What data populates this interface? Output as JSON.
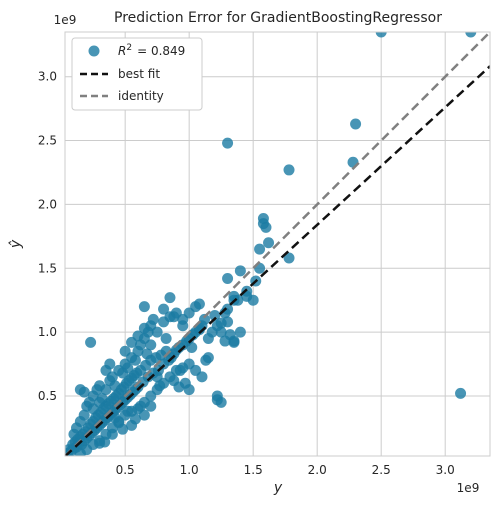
{
  "chart_data": {
    "type": "scatter",
    "title": "Prediction Error for GradientBoostingRegressor",
    "xlabel": "y",
    "ylabel": "ŷ",
    "x_exponent_label": "1e9",
    "y_exponent_label": "1e9",
    "xlim": [
      0.03,
      3.35
    ],
    "ylim": [
      0.03,
      3.35
    ],
    "xticks": [
      0.5,
      1.0,
      1.5,
      2.0,
      2.5,
      3.0
    ],
    "yticks": [
      0.5,
      1.0,
      1.5,
      2.0,
      2.5,
      3.0
    ],
    "grid": true,
    "legend_placement": "top-left",
    "colors": {
      "points": "#1a7ba3",
      "best_fit": "#111111",
      "identity": "#808080",
      "grid": "#cccccc",
      "axes_border": "#cccccc"
    },
    "legend": [
      {
        "label": "$R^2$ = 0.849",
        "superscript_label": true,
        "kind": "marker"
      },
      {
        "label": "best fit",
        "kind": "dashed-line"
      },
      {
        "label": "identity",
        "kind": "dashed-line"
      }
    ],
    "legend_r2_text": {
      "base": "R",
      "sup": "2",
      "rest": "= 0.849"
    },
    "r_squared": 0.849,
    "best_fit": {
      "slope": 0.92,
      "intercept": 0.0
    },
    "identity": {
      "slope": 1.0,
      "intercept": 0.0
    },
    "series": [
      {
        "name": "",
        "points": [
          [
            0.05,
            0.05
          ],
          [
            0.06,
            0.08
          ],
          [
            0.08,
            0.07
          ],
          [
            0.09,
            0.12
          ],
          [
            0.1,
            0.09
          ],
          [
            0.11,
            0.14
          ],
          [
            0.12,
            0.1
          ],
          [
            0.13,
            0.16
          ],
          [
            0.14,
            0.13
          ],
          [
            0.15,
            0.18
          ],
          [
            0.16,
            0.12
          ],
          [
            0.17,
            0.2
          ],
          [
            0.18,
            0.15
          ],
          [
            0.19,
            0.22
          ],
          [
            0.2,
            0.17
          ],
          [
            0.21,
            0.25
          ],
          [
            0.22,
            0.19
          ],
          [
            0.23,
            0.28
          ],
          [
            0.24,
            0.21
          ],
          [
            0.25,
            0.3
          ],
          [
            0.26,
            0.23
          ],
          [
            0.27,
            0.33
          ],
          [
            0.28,
            0.25
          ],
          [
            0.29,
            0.35
          ],
          [
            0.3,
            0.27
          ],
          [
            0.31,
            0.37
          ],
          [
            0.32,
            0.29
          ],
          [
            0.33,
            0.4
          ],
          [
            0.34,
            0.31
          ],
          [
            0.35,
            0.42
          ],
          [
            0.36,
            0.33
          ],
          [
            0.37,
            0.44
          ],
          [
            0.38,
            0.35
          ],
          [
            0.39,
            0.46
          ],
          [
            0.4,
            0.37
          ],
          [
            0.41,
            0.48
          ],
          [
            0.42,
            0.39
          ],
          [
            0.43,
            0.5
          ],
          [
            0.44,
            0.41
          ],
          [
            0.45,
            0.52
          ],
          [
            0.46,
            0.43
          ],
          [
            0.47,
            0.55
          ],
          [
            0.48,
            0.45
          ],
          [
            0.49,
            0.57
          ],
          [
            0.5,
            0.47
          ],
          [
            0.51,
            0.6
          ],
          [
            0.52,
            0.49
          ],
          [
            0.53,
            0.62
          ],
          [
            0.54,
            0.51
          ],
          [
            0.55,
            0.64
          ],
          [
            0.56,
            0.53
          ],
          [
            0.57,
            0.66
          ],
          [
            0.58,
            0.55
          ],
          [
            0.59,
            0.68
          ],
          [
            0.6,
            0.57
          ],
          [
            0.62,
            0.7
          ],
          [
            0.64,
            0.61
          ],
          [
            0.66,
            0.74
          ],
          [
            0.68,
            0.65
          ],
          [
            0.7,
            0.78
          ],
          [
            0.72,
            0.68
          ],
          [
            0.74,
            0.8
          ],
          [
            0.76,
            0.7
          ],
          [
            0.78,
            0.82
          ],
          [
            0.8,
            0.75
          ],
          [
            0.82,
            0.85
          ],
          [
            0.84,
            0.78
          ],
          [
            0.86,
            0.8
          ],
          [
            0.88,
            0.83
          ],
          [
            0.9,
            0.86
          ],
          [
            0.92,
            0.88
          ],
          [
            0.95,
            0.9
          ],
          [
            0.98,
            0.93
          ],
          [
            1.0,
            0.95
          ],
          [
            1.03,
            0.98
          ],
          [
            1.05,
            1.0
          ],
          [
            1.08,
            1.02
          ],
          [
            1.1,
            1.05
          ],
          [
            0.1,
            0.2
          ],
          [
            0.12,
            0.25
          ],
          [
            0.15,
            0.3
          ],
          [
            0.18,
            0.35
          ],
          [
            0.2,
            0.42
          ],
          [
            0.22,
            0.45
          ],
          [
            0.25,
            0.5
          ],
          [
            0.28,
            0.55
          ],
          [
            0.3,
            0.58
          ],
          [
            0.32,
            0.48
          ],
          [
            0.35,
            0.55
          ],
          [
            0.38,
            0.62
          ],
          [
            0.4,
            0.65
          ],
          [
            0.42,
            0.58
          ],
          [
            0.45,
            0.7
          ],
          [
            0.48,
            0.68
          ],
          [
            0.5,
            0.75
          ],
          [
            0.52,
            0.72
          ],
          [
            0.55,
            0.8
          ],
          [
            0.58,
            0.78
          ],
          [
            0.6,
            0.85
          ],
          [
            0.62,
            0.9
          ],
          [
            0.65,
            0.95
          ],
          [
            0.68,
            1.0
          ],
          [
            0.7,
            1.05
          ],
          [
            0.75,
            1.0
          ],
          [
            0.8,
            1.08
          ],
          [
            0.85,
            1.12
          ],
          [
            0.9,
            1.15
          ],
          [
            0.95,
            1.1
          ],
          [
            0.15,
            0.05
          ],
          [
            0.2,
            0.08
          ],
          [
            0.25,
            0.12
          ],
          [
            0.3,
            0.15
          ],
          [
            0.35,
            0.2
          ],
          [
            0.4,
            0.25
          ],
          [
            0.45,
            0.3
          ],
          [
            0.5,
            0.35
          ],
          [
            0.55,
            0.38
          ],
          [
            0.6,
            0.4
          ],
          [
            0.65,
            0.45
          ],
          [
            0.7,
            0.5
          ],
          [
            0.75,
            0.55
          ],
          [
            0.8,
            0.6
          ],
          [
            0.85,
            0.65
          ],
          [
            0.9,
            0.7
          ],
          [
            0.95,
            0.72
          ],
          [
            1.0,
            0.75
          ],
          [
            0.23,
            0.92
          ],
          [
            0.55,
            0.27
          ],
          [
            0.65,
            0.35
          ],
          [
            0.3,
            0.13
          ],
          [
            0.4,
            0.2
          ],
          [
            0.48,
            0.24
          ],
          [
            0.34,
            0.14
          ],
          [
            0.45,
            0.29
          ],
          [
            0.58,
            0.32
          ],
          [
            0.52,
            0.38
          ],
          [
            0.42,
            0.33
          ],
          [
            0.62,
            0.42
          ],
          [
            0.7,
            0.42
          ],
          [
            0.77,
            0.58
          ],
          [
            0.88,
            0.62
          ],
          [
            0.93,
            0.7
          ],
          [
            0.15,
            0.55
          ],
          [
            0.18,
            0.53
          ],
          [
            0.25,
            0.4
          ],
          [
            0.3,
            0.45
          ],
          [
            0.35,
            0.7
          ],
          [
            0.38,
            0.75
          ],
          [
            0.5,
            0.85
          ],
          [
            0.55,
            0.92
          ],
          [
            0.6,
            0.97
          ],
          [
            0.65,
            1.03
          ],
          [
            0.67,
            0.83
          ],
          [
            0.7,
            0.9
          ],
          [
            0.72,
            1.1
          ],
          [
            0.75,
            0.65
          ],
          [
            0.82,
            0.95
          ],
          [
            0.88,
            1.12
          ],
          [
            0.95,
            1.05
          ],
          [
            1.0,
            1.15
          ],
          [
            1.05,
            1.2
          ],
          [
            1.08,
            1.22
          ],
          [
            1.02,
            0.88
          ],
          [
            0.97,
            0.6
          ],
          [
            0.92,
            0.57
          ],
          [
            0.85,
            1.27
          ],
          [
            0.65,
            1.2
          ],
          [
            0.8,
            1.18
          ],
          [
            1.08,
            1.03
          ],
          [
            1.12,
            1.1
          ],
          [
            1.15,
            0.95
          ],
          [
            1.18,
            1.0
          ],
          [
            1.2,
            1.13
          ],
          [
            1.22,
            1.05
          ],
          [
            1.25,
            1.07
          ],
          [
            1.28,
            1.15
          ],
          [
            1.3,
            1.08
          ],
          [
            1.32,
            0.98
          ],
          [
            1.35,
            0.93
          ],
          [
            1.22,
            0.5
          ],
          [
            1.25,
            0.45
          ],
          [
            1.13,
            0.78
          ],
          [
            1.3,
            1.18
          ],
          [
            1.35,
            1.25
          ],
          [
            1.38,
            1.25
          ],
          [
            1.45,
            1.32
          ],
          [
            1.3,
            1.42
          ],
          [
            1.35,
            1.28
          ],
          [
            1.4,
            1.48
          ],
          [
            1.45,
            1.28
          ],
          [
            1.5,
            1.25
          ],
          [
            1.55,
            1.5
          ],
          [
            1.52,
            1.4
          ],
          [
            1.6,
            1.82
          ],
          [
            1.58,
            1.89
          ],
          [
            1.62,
            1.7
          ],
          [
            1.58,
            1.85
          ],
          [
            1.55,
            1.65
          ],
          [
            1.78,
            1.58
          ],
          [
            1.78,
            2.27
          ],
          [
            1.3,
            2.48
          ],
          [
            2.3,
            2.63
          ],
          [
            2.28,
            2.33
          ],
          [
            2.5,
            3.35
          ],
          [
            3.2,
            3.35
          ],
          [
            3.12,
            0.52
          ],
          [
            1.22,
            0.47
          ],
          [
            1.15,
            0.8
          ],
          [
            1.0,
            0.55
          ],
          [
            1.1,
            0.65
          ],
          [
            1.05,
            0.7
          ],
          [
            1.25,
            1.0
          ],
          [
            1.35,
            0.92
          ],
          [
            1.4,
            1.0
          ],
          [
            1.28,
            0.93
          ]
        ]
      }
    ]
  }
}
